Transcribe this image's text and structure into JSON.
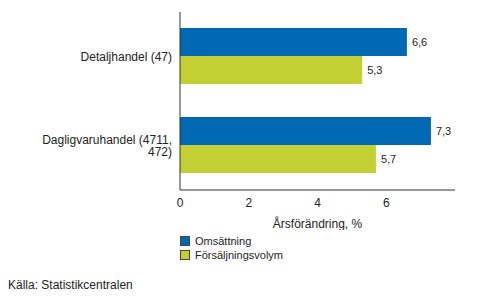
{
  "chart_data": {
    "type": "bar",
    "orientation": "horizontal",
    "categories": [
      "Detaljhandel (47)",
      "Dagligvaruhandel (4711, 472)"
    ],
    "series": [
      {
        "name": "Omsättning",
        "color": "#0069b4",
        "values": [
          6.6,
          7.3
        ],
        "value_labels": [
          "6,6",
          "7,3"
        ]
      },
      {
        "name": "Försäljningsvolym",
        "color": "#c3d034",
        "values": [
          5.3,
          5.7
        ],
        "value_labels": [
          "5,3",
          "5,7"
        ]
      }
    ],
    "xlabel": "Årsförändring, %",
    "xlim": [
      0,
      8
    ],
    "xticks": [
      0,
      2,
      4,
      6
    ],
    "grid": false,
    "data_labels": true,
    "legend": "bottom",
    "annotations": [
      "Källa: Statistikcentralen"
    ]
  }
}
